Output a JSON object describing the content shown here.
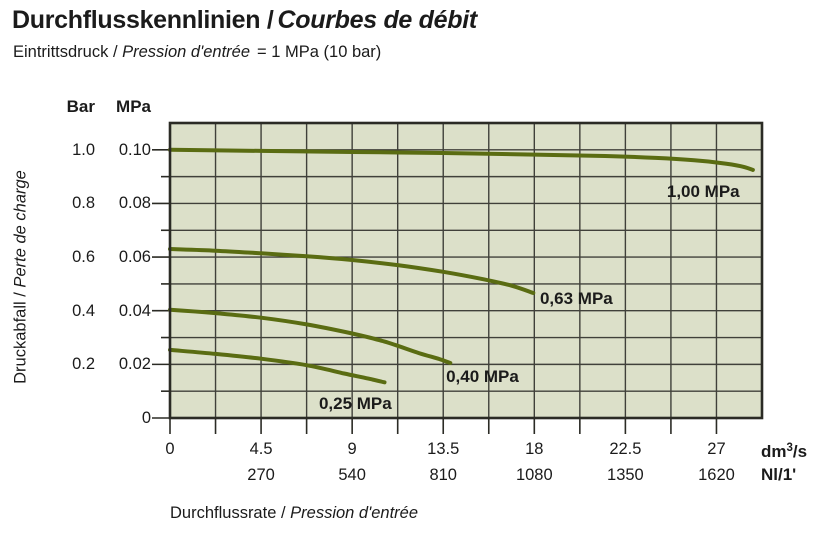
{
  "header": {
    "title_de": "Durchflusskennlinien /",
    "title_fr": "Courbes de débit",
    "subtitle_de": "Eintrittsdruck /",
    "subtitle_fr": "Pression d'entrée",
    "subtitle_value": "= 1 MPa (10 bar)"
  },
  "chart_data": {
    "type": "line",
    "title": "Durchflusskennlinien / Courbes de débit",
    "subtitle": "Eintrittsdruck / Pression d'entrée = 1 MPa (10 bar)",
    "grid": "on",
    "legend_position": "inline-labels",
    "x_axis": {
      "label_de": "Durchflussrate /",
      "label_fr": "Pression d'entrée",
      "unit_primary": {
        "base": "dm",
        "sup": "3",
        "rest": "/s"
      },
      "unit_secondary": "Nl/1'",
      "range": [
        0,
        29.25
      ],
      "grid_step": 2.25,
      "ticks_dm3s": [
        {
          "label": "0",
          "value": 0
        },
        {
          "label": "4.5",
          "value": 4.5
        },
        {
          "label": "9",
          "value": 9
        },
        {
          "label": "13.5",
          "value": 13.5
        },
        {
          "label": "18",
          "value": 18
        },
        {
          "label": "22.5",
          "value": 22.5
        },
        {
          "label": "27",
          "value": 27
        }
      ],
      "ticks_nl": [
        {
          "label": "270",
          "value": 4.5
        },
        {
          "label": "540",
          "value": 9
        },
        {
          "label": "810",
          "value": 13.5
        },
        {
          "label": "1080",
          "value": 18
        },
        {
          "label": "1350",
          "value": 22.5
        },
        {
          "label": "1620",
          "value": 27
        }
      ]
    },
    "y_axis": {
      "label_de": "Druckabfall /",
      "label_fr": "Perte de charge",
      "unit_left": "Bar",
      "unit_right": "MPa",
      "range": [
        0,
        0.11
      ],
      "grid_step": 0.01,
      "rows": [
        {
          "bar": "1.0",
          "mpa": "0.10",
          "value": 0.1
        },
        {
          "bar": "0.8",
          "mpa": "0.08",
          "value": 0.08
        },
        {
          "bar": "0.6",
          "mpa": "0.06",
          "value": 0.06
        },
        {
          "bar": "0.4",
          "mpa": "0.04",
          "value": 0.04
        },
        {
          "bar": "0.2",
          "mpa": "0.02",
          "value": 0.02
        },
        {
          "bar": "",
          "mpa": "0",
          "value": 0
        }
      ]
    },
    "series": [
      {
        "name": "1,00 MPa",
        "inlet_pressure_mpa": 1.0,
        "points": [
          [
            0,
            0.1
          ],
          [
            4.5,
            0.0996
          ],
          [
            9,
            0.0992
          ],
          [
            13.5,
            0.0988
          ],
          [
            18,
            0.0982
          ],
          [
            21.5,
            0.0977
          ],
          [
            24,
            0.097
          ],
          [
            25.9,
            0.0961
          ],
          [
            27.2,
            0.0951
          ],
          [
            28.2,
            0.0939
          ],
          [
            28.8,
            0.0925
          ]
        ],
        "label_anchor": [
          24.55,
          0.0843
        ]
      },
      {
        "name": "0,63 MPa",
        "inlet_pressure_mpa": 0.63,
        "points": [
          [
            0,
            0.063
          ],
          [
            2.25,
            0.0624
          ],
          [
            4.5,
            0.0614
          ],
          [
            6.75,
            0.0603
          ],
          [
            9,
            0.0589
          ],
          [
            11.25,
            0.057
          ],
          [
            13.5,
            0.0545
          ],
          [
            15.5,
            0.0517
          ],
          [
            16.9,
            0.0493
          ],
          [
            17.95,
            0.0466
          ]
        ],
        "label_anchor": [
          18.28,
          0.0444
        ]
      },
      {
        "name": "0,40 MPa",
        "inlet_pressure_mpa": 0.4,
        "points": [
          [
            0,
            0.0404
          ],
          [
            2.25,
            0.0391
          ],
          [
            4.5,
            0.0374
          ],
          [
            6.75,
            0.0349
          ],
          [
            9,
            0.0315
          ],
          [
            10.6,
            0.0285
          ],
          [
            12.3,
            0.0242
          ],
          [
            13.3,
            0.022
          ],
          [
            13.85,
            0.0205
          ]
        ],
        "label_anchor": [
          13.64,
          0.0153
        ]
      },
      {
        "name": "0,25 MPa",
        "inlet_pressure_mpa": 0.25,
        "points": [
          [
            0,
            0.0254
          ],
          [
            2.25,
            0.0239
          ],
          [
            4.5,
            0.0221
          ],
          [
            6.75,
            0.0197
          ],
          [
            8.6,
            0.0166
          ],
          [
            9.8,
            0.0147
          ],
          [
            10.6,
            0.0133
          ]
        ],
        "label_anchor": [
          7.36,
          0.0052
        ]
      }
    ],
    "colors": {
      "curve": "#5a6c12",
      "grid": "#40403a",
      "border": "#2b2b25",
      "plot_bg": "#dce0c9",
      "text": "#1b1b1b"
    }
  }
}
